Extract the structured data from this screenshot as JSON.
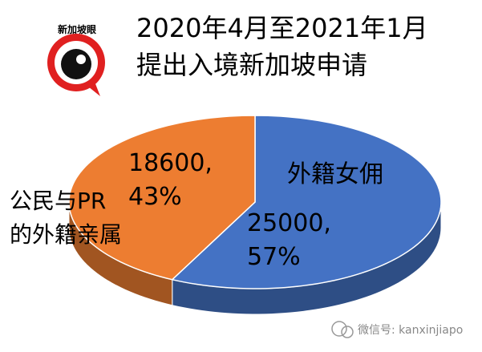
{
  "logo_text": "新加坡眼",
  "watermark": "微信号: kanxinjiapo",
  "chart_data": {
    "type": "pie3d",
    "title": "2020年4月至2021年1月\n提出入境新加坡申请",
    "categories": [
      "外籍女佣",
      "公民与PR\n的外籍亲属"
    ],
    "values": [
      25000,
      18600
    ],
    "value_labels": [
      "25000,\n57%",
      "18600,\n43%"
    ],
    "colors": [
      "#4472c4",
      "#ed7d31"
    ]
  }
}
